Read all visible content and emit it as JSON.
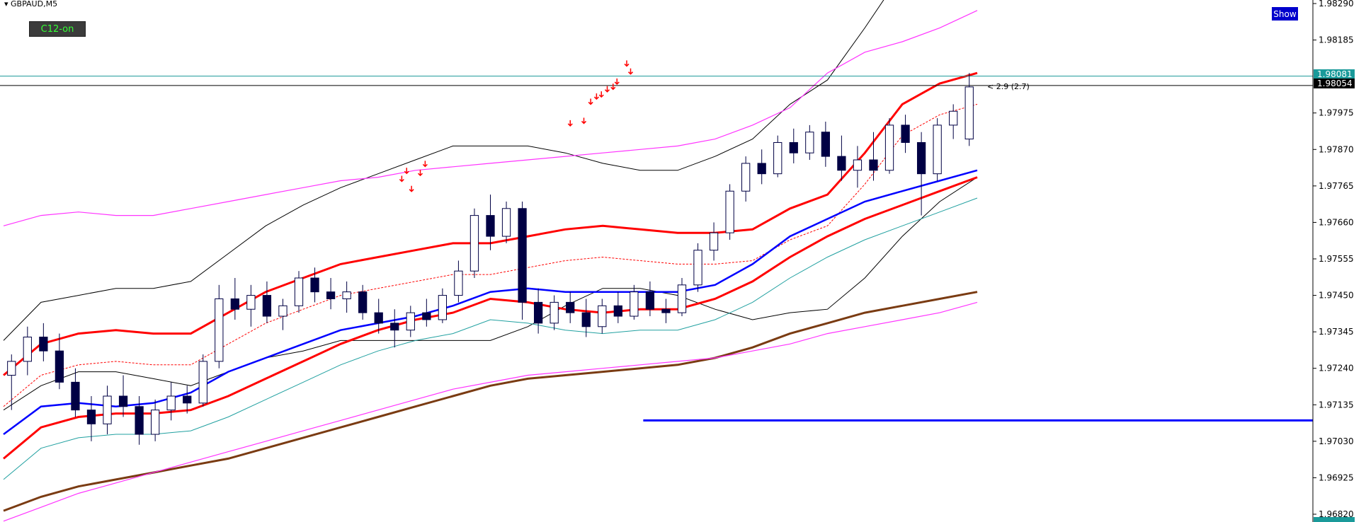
{
  "symbol_title": "GBPAUD,M5",
  "buttons": {
    "c12": "C12-on",
    "show": "Show"
  },
  "annotation": "< 2.9 (2.7)",
  "price_tags": {
    "upper": "1.98081",
    "current": "1.98054",
    "bottom": "1.96820"
  },
  "colors": {
    "upper_tag": "#1a9a9a",
    "current_tag": "#000000",
    "bottom_tag": "#1a9a9a",
    "ema_red": "#ff0000",
    "ema_blue": "#0000ff",
    "ema_brown": "#7a3b12",
    "magenta": "#ff33ff",
    "teal": "#20a0a0",
    "bands": "#000000",
    "candle": "#000044",
    "arrow": "#ff0000"
  },
  "chart_data": {
    "type": "line",
    "title": "",
    "xlabel": "",
    "ylabel": "",
    "ylim": [
      1.9677,
      1.9829
    ],
    "grid": false,
    "y_ticks": [
      "1.98290",
      "1.98185",
      "1.97975",
      "1.97870",
      "1.97765",
      "1.97660",
      "1.97555",
      "1.97450",
      "1.97345",
      "1.97240",
      "1.97135",
      "1.97030",
      "1.96925",
      "1.96820"
    ],
    "horizontal_lines": [
      {
        "name": "",
        "value": 1.98081
      },
      {
        "name": "",
        "value": 1.98054
      },
      {
        "name": "",
        "value": 1.9709,
        "x_start": 0.657,
        "x_end": 1.0
      }
    ],
    "series": [
      {
        "name": "",
        "role": "ema_red_fast",
        "values": [
          1.9722,
          1.9731,
          1.9734,
          1.9735,
          1.9734,
          1.9734,
          1.974,
          1.9746,
          1.975,
          1.9754,
          1.9756,
          1.9758,
          1.976,
          1.976,
          1.9762,
          1.9764,
          1.9765,
          1.9764,
          1.9763,
          1.9763,
          1.9764,
          1.977,
          1.9774,
          1.9786,
          1.98,
          1.9806,
          1.9809
        ]
      },
      {
        "name": "",
        "role": "blue_ma",
        "values": [
          1.9705,
          1.9713,
          1.9714,
          1.9713,
          1.9714,
          1.9717,
          1.9723,
          1.9727,
          1.9731,
          1.9735,
          1.9737,
          1.9739,
          1.9742,
          1.9746,
          1.9747,
          1.9746,
          1.9746,
          1.9746,
          1.9746,
          1.9748,
          1.9754,
          1.9762,
          1.9767,
          1.9772,
          1.9775,
          1.9778,
          1.9781
        ]
      },
      {
        "name": "",
        "role": "red_slow",
        "values": [
          1.9698,
          1.9707,
          1.971,
          1.9711,
          1.9711,
          1.9712,
          1.9716,
          1.9721,
          1.9726,
          1.9731,
          1.9735,
          1.9738,
          1.974,
          1.9744,
          1.9743,
          1.9741,
          1.974,
          1.9741,
          1.9741,
          1.9744,
          1.9749,
          1.9756,
          1.9762,
          1.9767,
          1.9771,
          1.9775,
          1.9779
        ]
      },
      {
        "name": "",
        "role": "brown_long",
        "values": [
          1.9683,
          1.9687,
          1.969,
          1.9692,
          1.9694,
          1.9696,
          1.9698,
          1.9701,
          1.9704,
          1.9707,
          1.971,
          1.9713,
          1.9716,
          1.9719,
          1.9721,
          1.9722,
          1.9723,
          1.9724,
          1.9725,
          1.9727,
          1.973,
          1.9734,
          1.9737,
          1.974,
          1.9742,
          1.9744,
          1.9746
        ]
      },
      {
        "name": "",
        "role": "magenta_upper",
        "values": [
          1.9765,
          1.9768,
          1.9769,
          1.9768,
          1.9768,
          1.977,
          1.9772,
          1.9774,
          1.9776,
          1.9778,
          1.9779,
          1.9781,
          1.9782,
          1.9783,
          1.9784,
          1.9785,
          1.9786,
          1.9787,
          1.9788,
          1.979,
          1.9794,
          1.9799,
          1.9809,
          1.9815,
          1.9818,
          1.9822,
          1.9827
        ]
      },
      {
        "name": "",
        "role": "magenta_lower",
        "values": [
          1.968,
          1.9684,
          1.9688,
          1.9691,
          1.9694,
          1.9697,
          1.97,
          1.9703,
          1.9706,
          1.9709,
          1.9712,
          1.9715,
          1.9718,
          1.972,
          1.9722,
          1.9723,
          1.9724,
          1.9725,
          1.9726,
          1.9727,
          1.9729,
          1.9731,
          1.9734,
          1.9736,
          1.9738,
          1.974,
          1.9743
        ]
      }
    ],
    "candles": [
      {
        "o": 1.9722,
        "h": 1.9728,
        "l": 1.9712,
        "c": 1.9726
      },
      {
        "o": 1.9726,
        "h": 1.9736,
        "l": 1.9722,
        "c": 1.9733
      },
      {
        "o": 1.9733,
        "h": 1.9737,
        "l": 1.9726,
        "c": 1.9729
      },
      {
        "o": 1.9729,
        "h": 1.9734,
        "l": 1.9718,
        "c": 1.972
      },
      {
        "o": 1.972,
        "h": 1.9724,
        "l": 1.971,
        "c": 1.9712
      },
      {
        "o": 1.9712,
        "h": 1.9716,
        "l": 1.9703,
        "c": 1.9708
      },
      {
        "o": 1.9708,
        "h": 1.9719,
        "l": 1.9705,
        "c": 1.9716
      },
      {
        "o": 1.9716,
        "h": 1.9722,
        "l": 1.971,
        "c": 1.9713
      },
      {
        "o": 1.9713,
        "h": 1.9716,
        "l": 1.9702,
        "c": 1.9705
      },
      {
        "o": 1.9705,
        "h": 1.9715,
        "l": 1.9703,
        "c": 1.9712
      },
      {
        "o": 1.9712,
        "h": 1.972,
        "l": 1.9709,
        "c": 1.9716
      },
      {
        "o": 1.9716,
        "h": 1.9719,
        "l": 1.9711,
        "c": 1.9714
      },
      {
        "o": 1.9714,
        "h": 1.9728,
        "l": 1.9713,
        "c": 1.9726
      },
      {
        "o": 1.9726,
        "h": 1.9748,
        "l": 1.9724,
        "c": 1.9744
      },
      {
        "o": 1.9744,
        "h": 1.975,
        "l": 1.9738,
        "c": 1.9741
      },
      {
        "o": 1.9741,
        "h": 1.9748,
        "l": 1.9736,
        "c": 1.9745
      },
      {
        "o": 1.9745,
        "h": 1.9749,
        "l": 1.9737,
        "c": 1.9739
      },
      {
        "o": 1.9739,
        "h": 1.9744,
        "l": 1.9735,
        "c": 1.9742
      },
      {
        "o": 1.9742,
        "h": 1.9752,
        "l": 1.974,
        "c": 1.975
      },
      {
        "o": 1.975,
        "h": 1.9753,
        "l": 1.9743,
        "c": 1.9746
      },
      {
        "o": 1.9746,
        "h": 1.975,
        "l": 1.9741,
        "c": 1.9744
      },
      {
        "o": 1.9744,
        "h": 1.9749,
        "l": 1.974,
        "c": 1.9746
      },
      {
        "o": 1.9746,
        "h": 1.9748,
        "l": 1.9738,
        "c": 1.974
      },
      {
        "o": 1.974,
        "h": 1.9744,
        "l": 1.9734,
        "c": 1.9737
      },
      {
        "o": 1.9737,
        "h": 1.9741,
        "l": 1.973,
        "c": 1.9735
      },
      {
        "o": 1.9735,
        "h": 1.9742,
        "l": 1.9733,
        "c": 1.974
      },
      {
        "o": 1.974,
        "h": 1.9744,
        "l": 1.9736,
        "c": 1.9738
      },
      {
        "o": 1.9738,
        "h": 1.9747,
        "l": 1.9737,
        "c": 1.9745
      },
      {
        "o": 1.9745,
        "h": 1.9755,
        "l": 1.9743,
        "c": 1.9752
      },
      {
        "o": 1.9752,
        "h": 1.977,
        "l": 1.975,
        "c": 1.9768
      },
      {
        "o": 1.9768,
        "h": 1.9774,
        "l": 1.9758,
        "c": 1.9762
      },
      {
        "o": 1.9762,
        "h": 1.9772,
        "l": 1.976,
        "c": 1.977
      },
      {
        "o": 1.977,
        "h": 1.9772,
        "l": 1.9738,
        "c": 1.9743
      },
      {
        "o": 1.9743,
        "h": 1.9747,
        "l": 1.9734,
        "c": 1.9737
      },
      {
        "o": 1.9737,
        "h": 1.9745,
        "l": 1.9735,
        "c": 1.9743
      },
      {
        "o": 1.9743,
        "h": 1.9746,
        "l": 1.9737,
        "c": 1.974
      },
      {
        "o": 1.974,
        "h": 1.9744,
        "l": 1.9733,
        "c": 1.9736
      },
      {
        "o": 1.9736,
        "h": 1.9744,
        "l": 1.9734,
        "c": 1.9742
      },
      {
        "o": 1.9742,
        "h": 1.9746,
        "l": 1.9737,
        "c": 1.9739
      },
      {
        "o": 1.9739,
        "h": 1.9748,
        "l": 1.9738,
        "c": 1.9746
      },
      {
        "o": 1.9746,
        "h": 1.9749,
        "l": 1.9739,
        "c": 1.9741
      },
      {
        "o": 1.9741,
        "h": 1.9744,
        "l": 1.9737,
        "c": 1.974
      },
      {
        "o": 1.974,
        "h": 1.975,
        "l": 1.9739,
        "c": 1.9748
      },
      {
        "o": 1.9748,
        "h": 1.976,
        "l": 1.9746,
        "c": 1.9758
      },
      {
        "o": 1.9758,
        "h": 1.9766,
        "l": 1.9755,
        "c": 1.9763
      },
      {
        "o": 1.9763,
        "h": 1.9777,
        "l": 1.9761,
        "c": 1.9775
      },
      {
        "o": 1.9775,
        "h": 1.9785,
        "l": 1.9772,
        "c": 1.9783
      },
      {
        "o": 1.9783,
        "h": 1.9787,
        "l": 1.9777,
        "c": 1.978
      },
      {
        "o": 1.978,
        "h": 1.9791,
        "l": 1.9779,
        "c": 1.9789
      },
      {
        "o": 1.9789,
        "h": 1.9793,
        "l": 1.9783,
        "c": 1.9786
      },
      {
        "o": 1.9786,
        "h": 1.9794,
        "l": 1.9784,
        "c": 1.9792
      },
      {
        "o": 1.9792,
        "h": 1.9795,
        "l": 1.9782,
        "c": 1.9785
      },
      {
        "o": 1.9785,
        "h": 1.9791,
        "l": 1.9778,
        "c": 1.9781
      },
      {
        "o": 1.9781,
        "h": 1.9788,
        "l": 1.9776,
        "c": 1.9784
      },
      {
        "o": 1.9784,
        "h": 1.9792,
        "l": 1.9778,
        "c": 1.9781
      },
      {
        "o": 1.9781,
        "h": 1.9796,
        "l": 1.978,
        "c": 1.9794
      },
      {
        "o": 1.9794,
        "h": 1.9797,
        "l": 1.9786,
        "c": 1.9789
      },
      {
        "o": 1.9789,
        "h": 1.9792,
        "l": 1.9768,
        "c": 1.978
      },
      {
        "o": 1.978,
        "h": 1.9796,
        "l": 1.9778,
        "c": 1.9794
      },
      {
        "o": 1.9794,
        "h": 1.98,
        "l": 1.979,
        "c": 1.9798
      },
      {
        "o": 1.979,
        "h": 1.9809,
        "l": 1.9788,
        "c": 1.9805
      }
    ],
    "signal_arrows": [
      {
        "x": 0.409,
        "value": 1.97778
      },
      {
        "x": 0.414,
        "value": 1.97801
      },
      {
        "x": 0.419,
        "value": 1.97749
      },
      {
        "x": 0.428,
        "value": 1.97795
      },
      {
        "x": 0.433,
        "value": 1.97821
      },
      {
        "x": 0.582,
        "value": 1.97938
      },
      {
        "x": 0.596,
        "value": 1.97945
      },
      {
        "x": 0.603,
        "value": 1.98
      },
      {
        "x": 0.609,
        "value": 1.98015
      },
      {
        "x": 0.614,
        "value": 1.98021
      },
      {
        "x": 0.62,
        "value": 1.98036
      },
      {
        "x": 0.626,
        "value": 1.98043
      },
      {
        "x": 0.63,
        "value": 1.98058
      },
      {
        "x": 0.64,
        "value": 1.9811
      },
      {
        "x": 0.644,
        "value": 1.98087
      }
    ]
  }
}
